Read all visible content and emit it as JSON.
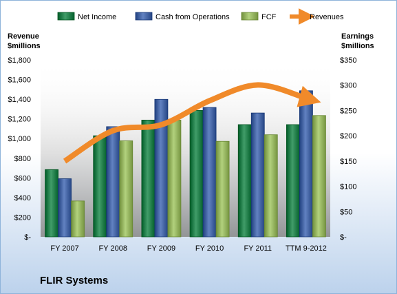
{
  "company": "FLIR Systems",
  "chart_data": {
    "type": "bar",
    "categories": [
      "FY 2007",
      "FY 2008",
      "FY 2009",
      "FY 2010",
      "FY 2011",
      "TTM 9-2012"
    ],
    "left_axis": {
      "title_line1": "Revenue",
      "title_line2": "$millions",
      "ticks": [
        "$-",
        "$200",
        "$400",
        "$600",
        "$800",
        "$1,000",
        "$1,200",
        "$1,400",
        "$1,600",
        "$1,800"
      ],
      "ylim": [
        0,
        1800
      ]
    },
    "right_axis": {
      "title_line1": "Earnings",
      "title_line2": "$millions",
      "ticks": [
        "$-",
        "$50",
        "$100",
        "$150",
        "$200",
        "$250",
        "$300",
        "$350"
      ],
      "ylim": [
        0,
        350
      ]
    },
    "series": [
      {
        "name": "Net Income",
        "axis": "right",
        "color": "#1e7a46",
        "values": [
          133,
          200,
          231,
          250,
          222,
          222
        ]
      },
      {
        "name": "Cash from Operations",
        "axis": "right",
        "color": "#3f5f9e",
        "values": [
          115,
          218,
          272,
          256,
          245,
          289
        ]
      },
      {
        "name": "FCF",
        "axis": "right",
        "color": "#8fae5a",
        "values": [
          71,
          190,
          231,
          189,
          202,
          240
        ]
      }
    ],
    "line_series": {
      "name": "Revenues",
      "axis": "left",
      "color": "#f08a2a",
      "values": [
        770,
        1080,
        1140,
        1385,
        1545,
        1410
      ]
    },
    "legend_position": "top",
    "grid": false
  }
}
